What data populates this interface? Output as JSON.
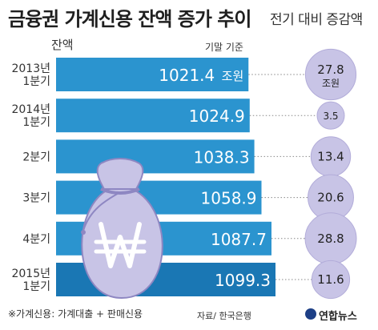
{
  "title": "금융권 가계신용 잔액 증가 추이",
  "change_label": "전기 대비 증감액",
  "balance_label": "잔액",
  "unit_note": "기말 기준",
  "footnote": "※가계신용: 가계대출 + 판매신용",
  "source": "자료/ 한국은행",
  "logo": "연합뉴스",
  "colors": {
    "bar": "#2b94cf",
    "bar_last": "#1a77b4",
    "bubble": "#c8c4e6",
    "bubble_stroke": "#b2acd9",
    "bag": "#c8c4e6",
    "bag_stroke": "#8e87c2"
  },
  "chart_data": {
    "type": "bar",
    "categories": [
      [
        "2013년",
        "1분기"
      ],
      [
        "2014년",
        "1분기"
      ],
      [
        "2분기"
      ],
      [
        "3분기"
      ],
      [
        "4분기"
      ],
      [
        "2015년",
        "1분기"
      ]
    ],
    "series": [
      {
        "values": [
          1021.4,
          1024.9,
          1038.3,
          1058.9,
          1087.7,
          1099.3
        ],
        "labels": [
          "1021.4",
          "1024.9",
          "1038.3",
          "1058.9",
          "1087.7",
          "1099.3"
        ]
      },
      {
        "values": [
          27.8,
          3.5,
          13.4,
          20.6,
          28.8,
          11.6
        ],
        "labels": [
          "27.8",
          "3.5",
          "13.4",
          "20.6",
          "28.8",
          "11.6"
        ]
      }
    ],
    "first_bar_unit": "조원",
    "first_bubble_unit": "조원",
    "icon": "won-money-bag-icon"
  }
}
